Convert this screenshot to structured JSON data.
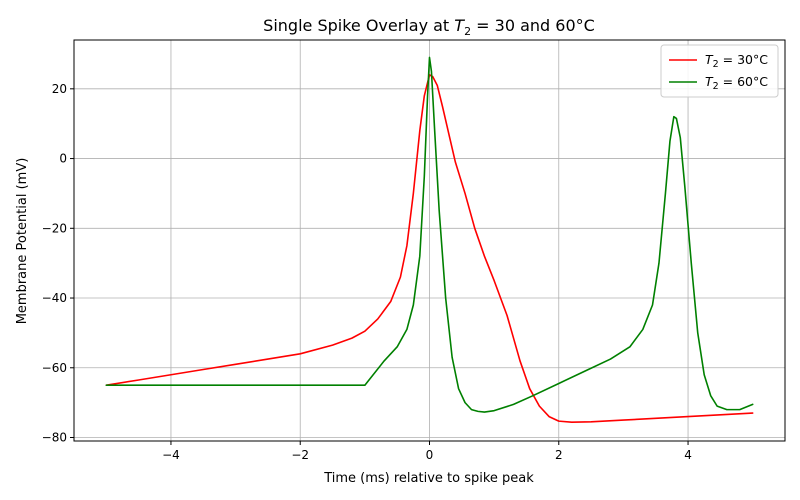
{
  "chart_data": {
    "type": "line",
    "title": "Single Spike Overlay at T₂ = 30 and 60°C",
    "title_parts": {
      "prefix": "Single Spike Overlay at ",
      "var": "T",
      "sub": "2",
      "suffix": " = 30 and 60°C"
    },
    "xlabel": "Time (ms) relative to spike peak",
    "ylabel": "Membrane Potential (mV)",
    "xlim": [
      -5.5,
      5.5
    ],
    "ylim": [
      -81,
      34
    ],
    "xticks": [
      -4,
      -2,
      0,
      2,
      4
    ],
    "yticks": [
      -80,
      -60,
      -40,
      -20,
      0,
      20
    ],
    "grid": true,
    "legend_position": "upper right",
    "series": [
      {
        "name": "T2 = 30°C",
        "legend_prefix": "T",
        "legend_sub": "2",
        "legend_suffix": " = 30°C",
        "color": "#ff0000",
        "x": [
          -5.0,
          -4.5,
          -4.0,
          -3.5,
          -3.0,
          -2.5,
          -2.0,
          -1.5,
          -1.2,
          -1.0,
          -0.8,
          -0.6,
          -0.45,
          -0.35,
          -0.25,
          -0.15,
          -0.08,
          0.0,
          0.05,
          0.12,
          0.2,
          0.3,
          0.4,
          0.55,
          0.7,
          0.85,
          1.0,
          1.2,
          1.4,
          1.55,
          1.7,
          1.85,
          2.0,
          2.2,
          2.5,
          3.0,
          3.5,
          4.0,
          4.5,
          5.0
        ],
        "y": [
          -65,
          -63.5,
          -62,
          -60.5,
          -59,
          -57.5,
          -56,
          -53.5,
          -51.5,
          -49.5,
          -46,
          -41,
          -34,
          -25,
          -10,
          8,
          18,
          24,
          23.5,
          21,
          15,
          7,
          -1,
          -10,
          -20,
          -28,
          -35,
          -45,
          -58,
          -66,
          -71,
          -74,
          -75.3,
          -75.6,
          -75.5,
          -75,
          -74.5,
          -74,
          -73.5,
          -73
        ]
      },
      {
        "name": "T2 = 60°C",
        "legend_prefix": "T",
        "legend_sub": "2",
        "legend_suffix": " = 60°C",
        "color": "#008000",
        "x": [
          -5.0,
          -4.0,
          -3.0,
          -2.0,
          -1.0,
          -0.7,
          -0.5,
          -0.35,
          -0.25,
          -0.15,
          -0.08,
          -0.03,
          0.0,
          0.03,
          0.08,
          0.15,
          0.25,
          0.35,
          0.45,
          0.55,
          0.65,
          0.75,
          0.85,
          1.0,
          1.3,
          1.6,
          2.0,
          2.4,
          2.8,
          3.1,
          3.3,
          3.45,
          3.55,
          3.65,
          3.72,
          3.78,
          3.82,
          3.88,
          3.95,
          4.05,
          4.15,
          4.25,
          4.35,
          4.45,
          4.6,
          4.8,
          5.0
        ],
        "y": [
          -65,
          -65,
          -65,
          -65,
          -65,
          -58,
          -54,
          -49,
          -42,
          -28,
          -5,
          18,
          29,
          25,
          8,
          -15,
          -40,
          -57,
          -66,
          -70,
          -72,
          -72.5,
          -72.7,
          -72.3,
          -70.5,
          -68,
          -64.5,
          -61,
          -57.5,
          -54,
          -49,
          -42,
          -30,
          -10,
          5,
          12,
          11.5,
          6,
          -8,
          -30,
          -50,
          -62,
          -68,
          -71,
          -72,
          -72,
          -70.5
        ]
      }
    ]
  }
}
